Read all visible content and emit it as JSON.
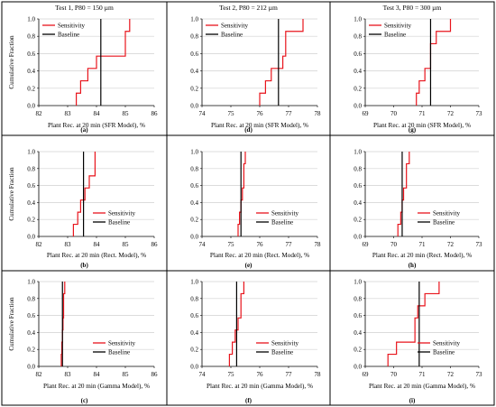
{
  "figure": {
    "legend_sensitivity": "Sensitivity",
    "legend_baseline": "Baseline",
    "sensitivity_color": "#e8141c",
    "baseline_color": "#000000",
    "grid_color": "#d0d0d0",
    "divider_color": "#000000"
  },
  "chart_data": [
    {
      "type": "line",
      "panel_label": "(a)",
      "title": "Test 1, P80 = 150 µm",
      "xlabel": "Plant Rec. at 20 min (SFR Model), %",
      "ylabel": "Cumulative Fraction",
      "xlim": [
        82,
        86
      ],
      "xticks": [
        82,
        83,
        84,
        85,
        86
      ],
      "ylim": [
        0,
        1
      ],
      "yticks": [
        0,
        0.2,
        0.4,
        0.6,
        0.8,
        1.0
      ],
      "grid": "horizontal",
      "legend_position": "top-left",
      "baseline": 84.15,
      "series": [
        {
          "name": "Sensitivity",
          "x": [
            83.3,
            83.45,
            83.7,
            84.0,
            85.0,
            85.15
          ],
          "y": [
            0.143,
            0.286,
            0.429,
            0.571,
            0.857,
            1.0
          ]
        }
      ]
    },
    {
      "type": "line",
      "panel_label": "(d)",
      "title": "Test 2, P80 = 212 µm",
      "xlabel": "Plant Rec. at 20 min (SFR Model), %",
      "ylabel": "",
      "xlim": [
        74,
        78
      ],
      "xticks": [
        74,
        75,
        76,
        77,
        78
      ],
      "ylim": [
        0,
        1
      ],
      "yticks": [
        0,
        0.2,
        0.4,
        0.6,
        0.8,
        1.0
      ],
      "grid": "horizontal",
      "legend_position": "top-left",
      "baseline": 76.65,
      "series": [
        {
          "name": "Sensitivity",
          "x": [
            76.0,
            76.2,
            76.4,
            76.8,
            76.9,
            77.5
          ],
          "y": [
            0.143,
            0.286,
            0.429,
            0.571,
            0.857,
            1.0
          ]
        }
      ]
    },
    {
      "type": "line",
      "panel_label": "(g)",
      "title": "Test 3, P80 = 300 µm",
      "xlabel": "Plant Rec. at 20 min (SFR Model), %",
      "ylabel": "",
      "xlim": [
        69,
        73
      ],
      "xticks": [
        69,
        70,
        71,
        72,
        73
      ],
      "ylim": [
        0,
        1
      ],
      "yticks": [
        0,
        0.2,
        0.4,
        0.6,
        0.8,
        1.0
      ],
      "grid": "horizontal",
      "legend_position": "top-left",
      "baseline": 71.3,
      "series": [
        {
          "name": "Sensitivity",
          "x": [
            70.8,
            70.9,
            71.1,
            71.3,
            71.5,
            72.0
          ],
          "y": [
            0.143,
            0.286,
            0.429,
            0.714,
            0.857,
            1.0
          ]
        }
      ]
    },
    {
      "type": "line",
      "panel_label": "(b)",
      "title": "",
      "xlabel": "Plant Rec. at 20 min (Rect. Model), %",
      "ylabel": "Cumulative Fraction",
      "xlim": [
        82,
        86
      ],
      "xticks": [
        82,
        83,
        84,
        85,
        86
      ],
      "ylim": [
        0,
        1
      ],
      "yticks": [
        0,
        0.2,
        0.4,
        0.6,
        0.8,
        1.0
      ],
      "grid": "horizontal",
      "legend_position": "bottom-right",
      "baseline": 83.55,
      "series": [
        {
          "name": "Sensitivity",
          "x": [
            83.2,
            83.35,
            83.45,
            83.6,
            83.75,
            83.95
          ],
          "y": [
            0.143,
            0.286,
            0.429,
            0.571,
            0.714,
            1.0
          ]
        }
      ]
    },
    {
      "type": "line",
      "panel_label": "(e)",
      "title": "",
      "xlabel": "Plant Rec. at 20 min (Rect. Model), %",
      "ylabel": "",
      "xlim": [
        74,
        78
      ],
      "xticks": [
        74,
        75,
        76,
        77,
        78
      ],
      "ylim": [
        0,
        1
      ],
      "yticks": [
        0,
        0.2,
        0.4,
        0.6,
        0.8,
        1.0
      ],
      "grid": "horizontal",
      "legend_position": "bottom-right",
      "baseline": 75.35,
      "series": [
        {
          "name": "Sensitivity",
          "x": [
            75.25,
            75.3,
            75.35,
            75.4,
            75.45,
            75.5
          ],
          "y": [
            0.143,
            0.286,
            0.429,
            0.571,
            0.857,
            1.0
          ]
        }
      ]
    },
    {
      "type": "line",
      "panel_label": "(h)",
      "title": "",
      "xlabel": "Plant Rec. at 20 min (Rect. Model), %",
      "ylabel": "",
      "xlim": [
        69,
        73
      ],
      "xticks": [
        69,
        70,
        71,
        72,
        73
      ],
      "ylim": [
        0,
        1
      ],
      "yticks": [
        0,
        0.2,
        0.4,
        0.6,
        0.8,
        1.0
      ],
      "grid": "horizontal",
      "legend_position": "bottom-right",
      "baseline": 70.3,
      "series": [
        {
          "name": "Sensitivity",
          "x": [
            70.15,
            70.25,
            70.3,
            70.35,
            70.45,
            70.55
          ],
          "y": [
            0.143,
            0.286,
            0.429,
            0.571,
            0.857,
            1.0
          ]
        }
      ]
    },
    {
      "type": "line",
      "panel_label": "(c)",
      "title": "",
      "xlabel": "Plant Rec. at 20 min (Gamma Model), %",
      "ylabel": "Cumulative Fraction",
      "xlim": [
        82,
        86
      ],
      "xticks": [
        82,
        83,
        84,
        85,
        86
      ],
      "ylim": [
        0,
        1
      ],
      "yticks": [
        0,
        0.2,
        0.4,
        0.6,
        0.8,
        1.0
      ],
      "grid": "horizontal",
      "legend_position": "bottom-right",
      "baseline": 82.82,
      "series": [
        {
          "name": "Sensitivity",
          "x": [
            82.78,
            82.8,
            82.82,
            82.84,
            82.86,
            82.9
          ],
          "y": [
            0.143,
            0.286,
            0.429,
            0.571,
            0.857,
            1.0
          ]
        }
      ]
    },
    {
      "type": "line",
      "panel_label": "(f)",
      "title": "",
      "xlabel": "Plant Rec. at 20 min (Gamma Model), %",
      "ylabel": "",
      "xlim": [
        74,
        78
      ],
      "xticks": [
        74,
        75,
        76,
        77,
        78
      ],
      "ylim": [
        0,
        1
      ],
      "yticks": [
        0,
        0.2,
        0.4,
        0.6,
        0.8,
        1.0
      ],
      "grid": "horizontal",
      "legend_position": "bottom-right",
      "baseline": 75.2,
      "series": [
        {
          "name": "Sensitivity",
          "x": [
            74.95,
            75.05,
            75.15,
            75.25,
            75.35,
            75.45
          ],
          "y": [
            0.143,
            0.286,
            0.429,
            0.571,
            0.857,
            1.0
          ]
        }
      ]
    },
    {
      "type": "line",
      "panel_label": "(i)",
      "title": "",
      "xlabel": "Plant Rec. at 20 min (Gamma Model), %",
      "ylabel": "",
      "xlim": [
        69,
        73
      ],
      "xticks": [
        69,
        70,
        71,
        72,
        73
      ],
      "ylim": [
        0,
        1
      ],
      "yticks": [
        0,
        0.2,
        0.4,
        0.6,
        0.8,
        1.0
      ],
      "grid": "horizontal",
      "legend_position": "bottom-right",
      "baseline": 70.9,
      "series": [
        {
          "name": "Sensitivity",
          "x": [
            69.8,
            70.1,
            70.75,
            70.85,
            71.1,
            71.6
          ],
          "y": [
            0.143,
            0.286,
            0.571,
            0.714,
            0.857,
            1.0
          ]
        }
      ]
    }
  ]
}
